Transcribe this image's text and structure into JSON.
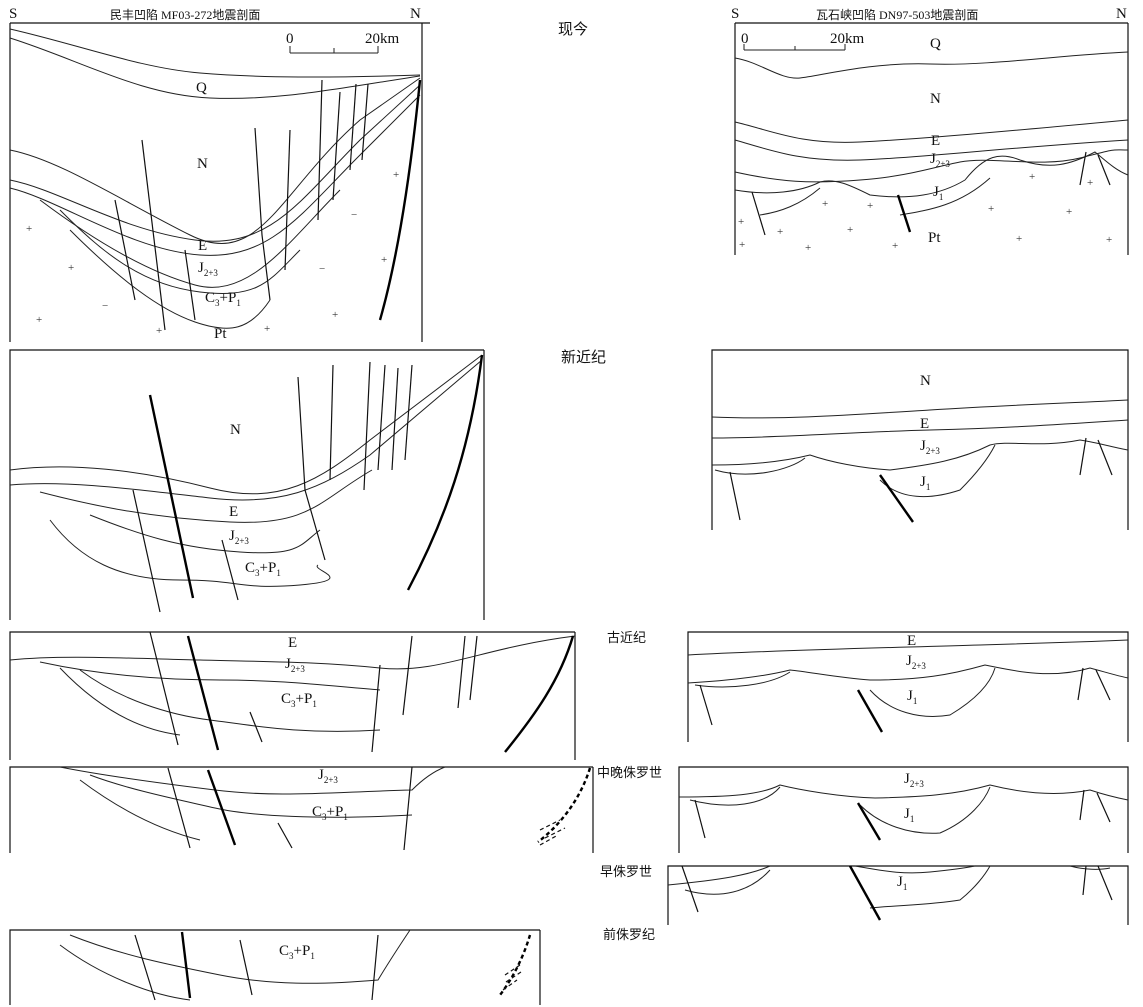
{
  "stages": {
    "present": "现今",
    "neogene": "新近纪",
    "paleogene": "古近纪",
    "mid_late_jurassic": "中晚侏罗世",
    "early_jurassic": "早侏罗世",
    "pre_jurassic": "前侏罗纪"
  },
  "left_section": {
    "title": "民丰凹陷 MF03-272地震剖面",
    "south": "S",
    "north": "N",
    "scale_zero": "0",
    "scale_max": "20km"
  },
  "right_section": {
    "title": "瓦石峡凹陷 DN97-503地震剖面",
    "south": "S",
    "north": "N",
    "scale_zero": "0",
    "scale_max": "20km"
  },
  "units": {
    "Q": "Q",
    "N": "N",
    "E": "E",
    "J": "J",
    "J23_sub": "2+3",
    "J1_sub": "1",
    "C": "C",
    "C_sub": "3",
    "plus_P": "+P",
    "P_sub": "1",
    "Pt": "Pt"
  },
  "symbols": {
    "basement": "+",
    "minus": "−"
  }
}
